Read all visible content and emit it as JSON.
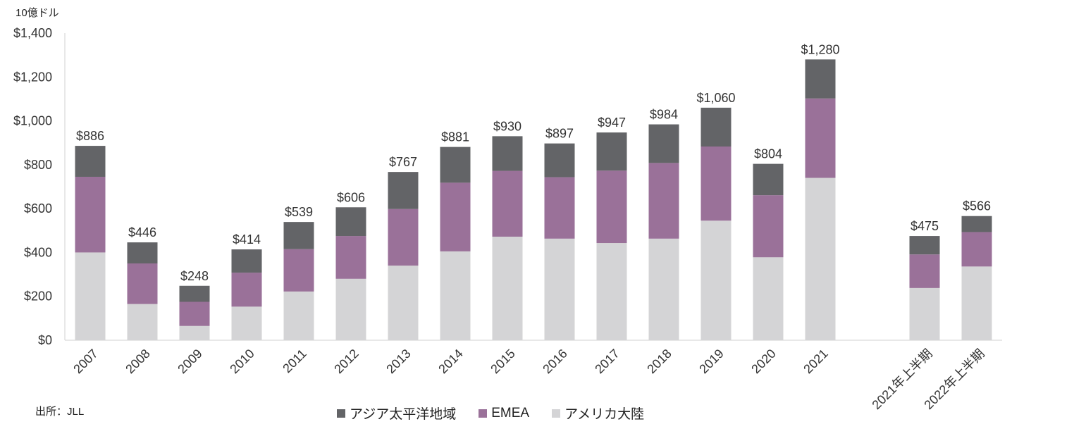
{
  "chart_data": {
    "type": "bar",
    "stacked": true,
    "unit_label": "10億ドル",
    "source": "出所：JLL",
    "categories": [
      "2007",
      "2008",
      "2009",
      "2010",
      "2011",
      "2012",
      "2013",
      "2014",
      "2015",
      "2016",
      "2017",
      "2018",
      "2019",
      "2020",
      "2021",
      "",
      "2021年上半期",
      "2022年上半期"
    ],
    "series": [
      {
        "name": "アメリカ大陸",
        "color": "#d4d4d6",
        "values": [
          400,
          165,
          65,
          153,
          222,
          280,
          340,
          405,
          472,
          463,
          443,
          463,
          545,
          378,
          740,
          null,
          238,
          336
        ]
      },
      {
        "name": "EMEA",
        "color": "#9a7199",
        "values": [
          345,
          185,
          110,
          155,
          193,
          195,
          258,
          313,
          300,
          280,
          330,
          345,
          338,
          283,
          362,
          null,
          153,
          157
        ]
      },
      {
        "name": "アジア太平洋地域",
        "color": "#636467",
        "values": [
          141,
          96,
          73,
          106,
          124,
          131,
          169,
          163,
          158,
          154,
          174,
          176,
          177,
          143,
          178,
          null,
          84,
          73
        ]
      }
    ],
    "totals": [
      886,
      446,
      248,
      414,
      539,
      606,
      767,
      881,
      930,
      897,
      947,
      984,
      1060,
      804,
      1280,
      null,
      475,
      566
    ],
    "total_labels": [
      "$886",
      "$446",
      "$248",
      "$414",
      "$539",
      "$606",
      "$767",
      "$881",
      "$930",
      "$897",
      "$947",
      "$984",
      "$1,060",
      "$804",
      "$1,280",
      "",
      "$475",
      "$566"
    ],
    "y_ticks": [
      0,
      200,
      400,
      600,
      800,
      1000,
      1200,
      1400
    ],
    "y_tick_labels": [
      "$0",
      "$200",
      "$400",
      "$600",
      "$800",
      "$1,000",
      "$1,200",
      "$1,400"
    ],
    "ylim": [
      0,
      1400
    ],
    "legend": [
      {
        "label": "アジア太平洋地域",
        "color": "#636467"
      },
      {
        "label": "EMEA",
        "color": "#9a7199"
      },
      {
        "label": "アメリカ大陸",
        "color": "#d4d4d6"
      }
    ],
    "legend_position": "bottom-center"
  }
}
